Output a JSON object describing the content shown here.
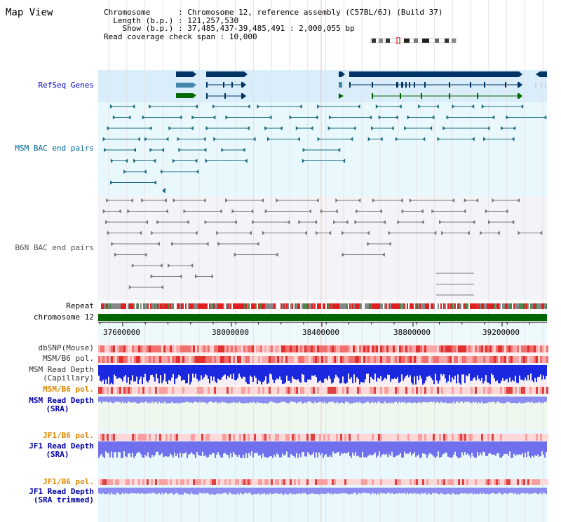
{
  "title": "Map View",
  "info": {
    "chromosome_key": "Chromosome",
    "chromosome_val": "Chromosome 12, reference assembly (C57BL/6J) (Build 37)",
    "length_key": "Length (b.p.)",
    "length_val": "121,257,530",
    "show_key": "Show (b.p.)",
    "show_val": "37,485,437-39,485,491 : 2,000,055 bp",
    "span_key": "Read coverage check span",
    "span_val": "10,000"
  },
  "tracks": {
    "refseq": "RefSeq Genes",
    "msm_bac": "MSM BAC end pairs",
    "b6n_bac": "B6N BAC end pairs",
    "repeat": "Repeat",
    "chromosome": "chromosome 12",
    "dbsnp": "dbSNP(Mouse)",
    "msm_b6_pol": "MSM/B6 pol.",
    "msm_depth_cap_1": "MSM Read Depth",
    "msm_depth_cap_2": "(Capillary)",
    "msm_b6_pol2": "MSM/B6 pol.",
    "msm_depth_sra_1": "MSM Read Depth",
    "msm_depth_sra_2": "(SRA)",
    "jf1_b6_pol": "JF1/B6 pol.",
    "jf1_depth_1": "JF1 Read Depth",
    "jf1_depth_2": "(SRA)",
    "jf1_b6_pol2": "JF1/B6 pol.",
    "jf1_trim_1": "JF1 Read Depth",
    "jf1_trim_2": "(SRA trimmed)"
  },
  "axis": {
    "ticks": [
      "37600000",
      "38000000",
      "38400000",
      "38800000",
      "39200000"
    ]
  },
  "colors": {
    "refseq_label": "#0000cc",
    "msm_label": "#006699",
    "b6n_label": "#555555",
    "pol_orange": "#dd8800",
    "blue_label": "#0000aa",
    "chromosome_bar": "#006600",
    "gene_navy": "#003366",
    "gene_teal": "#4488aa",
    "gene_green": "#006600"
  }
}
